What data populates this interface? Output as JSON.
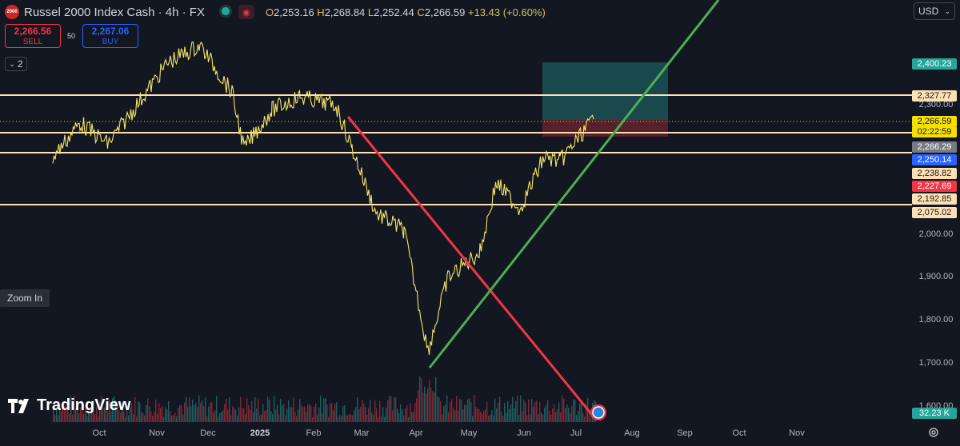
{
  "header": {
    "symbol_icon": "2000",
    "title": "Russel 2000 Index Cash · 4h · FX",
    "ohlc": {
      "o": "2,253.16",
      "h": "2,268.84",
      "l": "2,252.44",
      "c": "2,266.59",
      "change": "+13.43 (+0.60%)"
    }
  },
  "trade": {
    "sell_price": "2,266.56",
    "sell_label": "SELL",
    "spread": "50",
    "buy_price": "2,267.06",
    "buy_label": "BUY"
  },
  "indicators_toggle": {
    "count": "2"
  },
  "zoom_in_label": "Zoom In",
  "logo_text": "TradingView",
  "currency": "USD",
  "price_axis": {
    "ticks": [
      "2,300.00",
      "2,000.00",
      "1,900.00",
      "1,800.00",
      "1,700.00",
      "1,600.00"
    ],
    "tags": [
      {
        "value": "2,400.23",
        "color": "#26a69a",
        "text_color": "#ffffff"
      },
      {
        "value": "2,327.77",
        "color": "#ffe0b2",
        "text_color": "#131722"
      },
      {
        "value": "2,266.59",
        "color": "#f5e000",
        "text_color": "#131722"
      },
      {
        "value": "02:22:59",
        "color": "#f5e000",
        "text_color": "#131722"
      },
      {
        "value": "2,266.29",
        "color": "#787b86",
        "text_color": "#ffffff"
      },
      {
        "value": "2,250.14",
        "color": "#2962ff",
        "text_color": "#ffffff"
      },
      {
        "value": "2,238.82",
        "color": "#ffe0b2",
        "text_color": "#131722"
      },
      {
        "value": "2,227.69",
        "color": "#f23645",
        "text_color": "#ffffff"
      },
      {
        "value": "2,192.85",
        "color": "#ffe0b2",
        "text_color": "#131722"
      },
      {
        "value": "2,075.02",
        "color": "#ffe0b2",
        "text_color": "#131722"
      }
    ],
    "volume_tag": "32.23 K"
  },
  "time_axis": [
    "Oct",
    "Nov",
    "Dec",
    "2025",
    "Feb",
    "Mar",
    "Apr",
    "May",
    "Jun",
    "Jul",
    "Aug",
    "Sep",
    "Oct",
    "Nov"
  ],
  "colors": {
    "background": "#131722",
    "price_line": "#f5e663",
    "horizontal_levels": "#ffe0b2",
    "downtrend": "#f23645",
    "uptrend": "#4caf50",
    "target_zone": "#26a69a",
    "stop_zone": "#f23645"
  },
  "chart_data": {
    "type": "line",
    "symbol": "Russel 2000 Index Cash",
    "timeframe": "4h",
    "x": [
      "Sep",
      "Oct",
      "Nov",
      "Nov",
      "Dec",
      "Dec",
      "Jan",
      "Jan",
      "Feb",
      "Feb",
      "Mar",
      "Mar",
      "Apr",
      "Apr",
      "Apr",
      "May",
      "May",
      "Jun",
      "Jun",
      "Jul",
      "Jul"
    ],
    "y": [
      2180,
      2260,
      2210,
      2400,
      2440,
      2330,
      2200,
      2290,
      2320,
      2300,
      2200,
      2050,
      2010,
      1730,
      1900,
      1960,
      2120,
      2060,
      2180,
      2170,
      2268
    ],
    "horizontal_levels": [
      2327.77,
      2266.59,
      2238.82,
      2192.85,
      2075.02
    ],
    "ylim": [
      1600,
      2480
    ]
  }
}
